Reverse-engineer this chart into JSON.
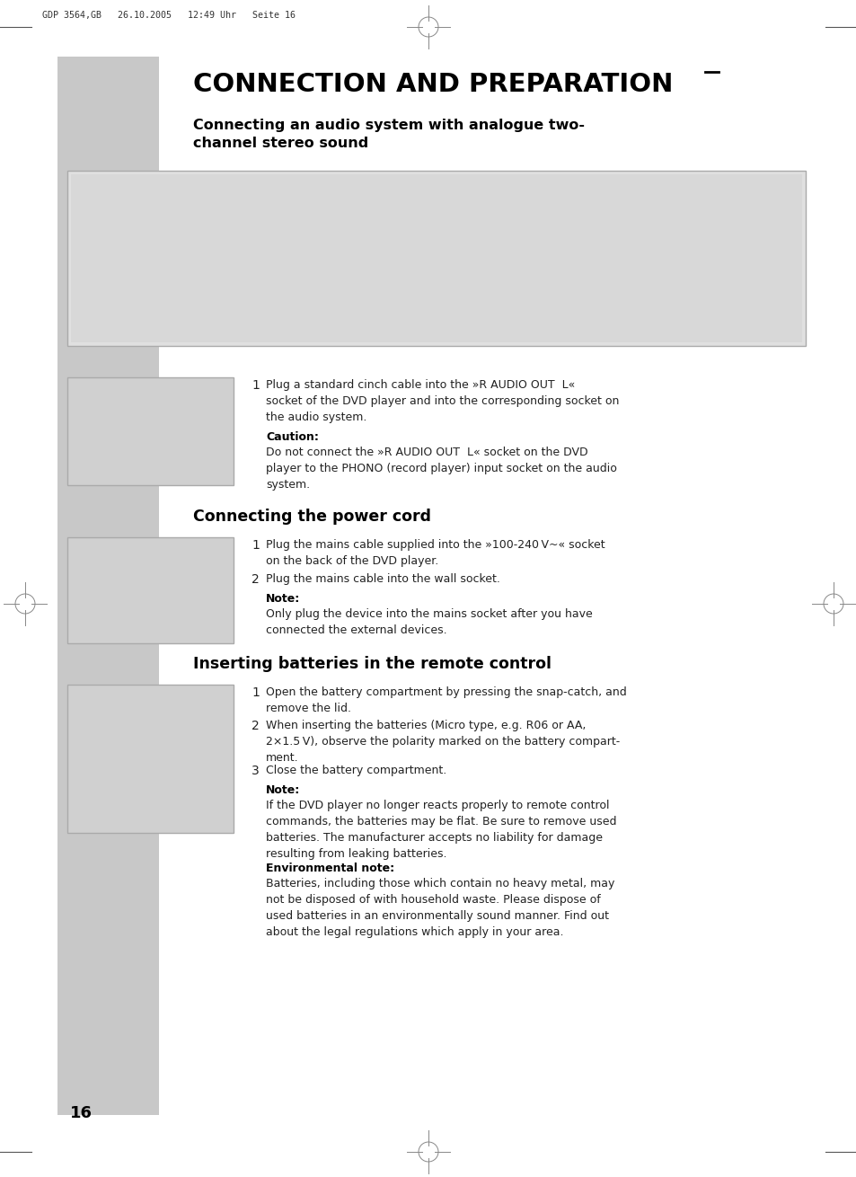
{
  "page_bg": "#ffffff",
  "left_bar_color": "#c8c8c8",
  "header_text": "GDP 3564,GB   26.10.2005   12:49 Uhr   Seite 16",
  "main_title": "CONNECTION AND PREPARATION",
  "section1_title": "Connecting an audio system with analogue two-\nchannel stereo sound",
  "section2_title": "Connecting the power cord",
  "section3_title": "Inserting batteries in the remote control",
  "caution_label": "Caution:",
  "caution_text": "Do not connect the »R AUDIO OUT  L« socket on the DVD\nplayer to the PHONO (record player) input socket on the audio\nsystem.",
  "note_label1": "Note:",
  "note_label2": "Note:",
  "env_label": "Environmental note:",
  "page_number": "16",
  "crosshair_color": "#888888",
  "text_color": "#222222",
  "bold_color": "#000000",
  "img_border_color": "#aaaaaa",
  "img_fill_color": "#e8e8e8"
}
